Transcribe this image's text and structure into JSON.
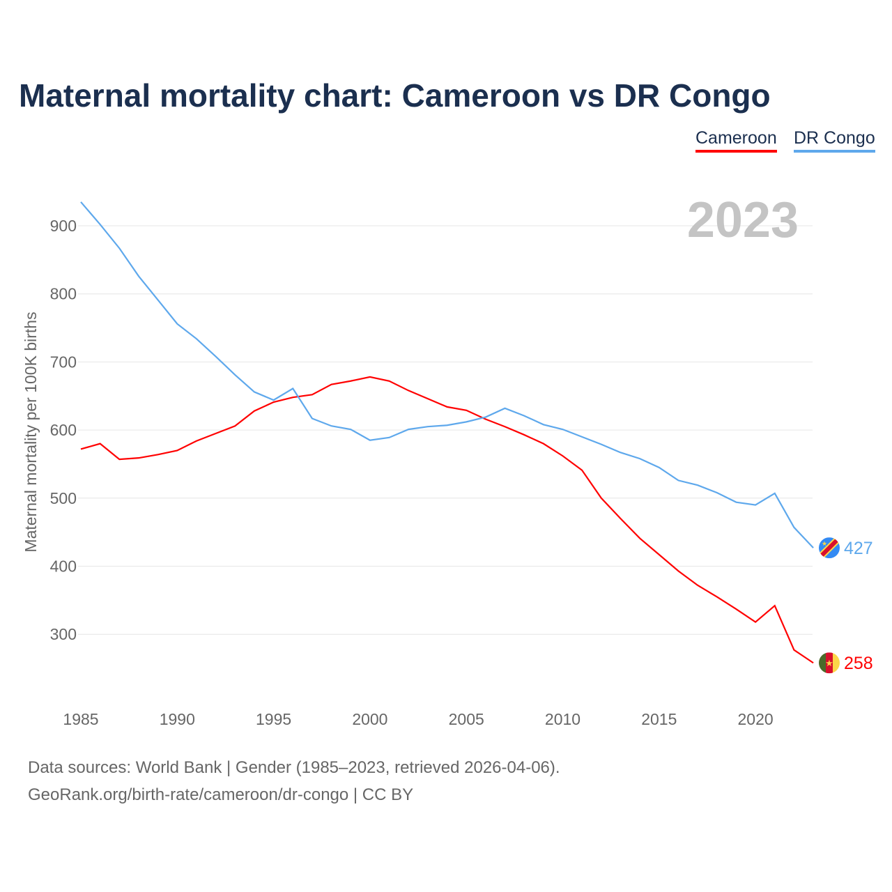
{
  "chart_data": {
    "type": "line",
    "title": "Maternal mortality chart: Cameroon vs DR Congo",
    "ylabel": "Maternal mortality per 100K births",
    "xlabel": "",
    "year_label": "2023",
    "xlim": [
      1985,
      2023
    ],
    "ylim": [
      210,
      940
    ],
    "yticks": [
      300,
      400,
      500,
      600,
      700,
      800,
      900
    ],
    "xticks": [
      1985,
      1990,
      1995,
      2000,
      2005,
      2010,
      2015,
      2020
    ],
    "grid": true,
    "legend_position": "top-right",
    "x": [
      1985,
      1986,
      1987,
      1988,
      1989,
      1990,
      1991,
      1992,
      1993,
      1994,
      1995,
      1996,
      1997,
      1998,
      1999,
      2000,
      2001,
      2002,
      2003,
      2004,
      2005,
      2006,
      2007,
      2008,
      2009,
      2010,
      2011,
      2012,
      2013,
      2014,
      2015,
      2016,
      2017,
      2018,
      2019,
      2020,
      2021,
      2022,
      2023
    ],
    "series": [
      {
        "name": "Cameroon",
        "color": "#ff0000",
        "end_label": "258",
        "values": [
          572,
          580,
          557,
          559,
          564,
          570,
          584,
          595,
          606,
          628,
          641,
          648,
          652,
          667,
          672,
          678,
          672,
          658,
          646,
          634,
          629,
          616,
          605,
          593,
          580,
          562,
          541,
          500,
          470,
          441,
          417,
          393,
          372,
          355,
          337,
          318,
          342,
          277,
          258
        ]
      },
      {
        "name": "DR Congo",
        "color": "#5ea8ec",
        "end_label": "427",
        "values": [
          935,
          902,
          867,
          826,
          791,
          756,
          734,
          708,
          681,
          656,
          644,
          661,
          617,
          606,
          601,
          585,
          589,
          601,
          605,
          607,
          612,
          619,
          632,
          621,
          608,
          601,
          590,
          579,
          567,
          558,
          545,
          526,
          519,
          508,
          494,
          490,
          507,
          457,
          427
        ]
      }
    ]
  },
  "footer": {
    "line1": "Data sources: World Bank | Gender (1985–2023, retrieved 2026-04-06).",
    "line2": "GeoRank.org/birth-rate/cameroon/dr-congo | CC BY"
  }
}
